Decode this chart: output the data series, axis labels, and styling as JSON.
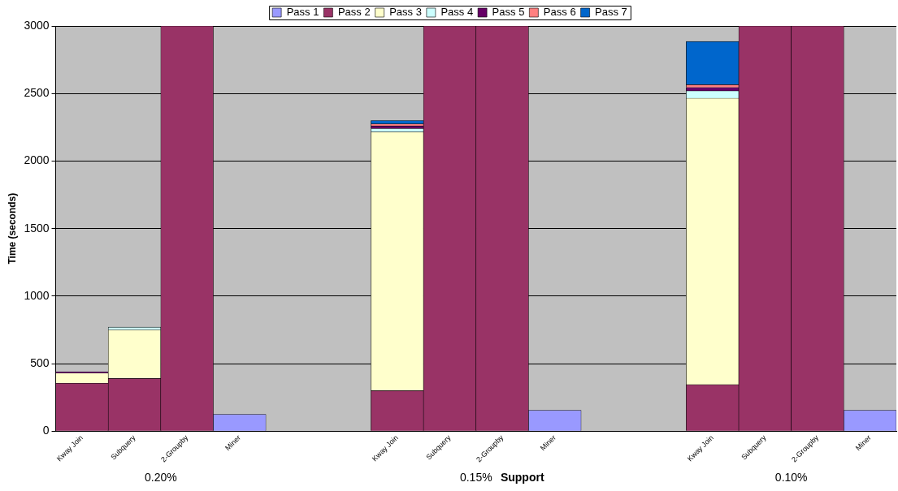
{
  "chart_data": {
    "type": "bar",
    "stacked": true,
    "xlabel": "Support",
    "ylabel": "Time (seconds)",
    "categories": [
      "Kway Join",
      "Subquery",
      "2-Groupby",
      "Miner",
      null,
      null,
      "Kway Join",
      "Subquery",
      "2-Groupby",
      "Miner",
      null,
      null,
      "Kway Join",
      "Subquery",
      "2-Groupby",
      "Miner"
    ],
    "series": [
      {
        "name": "Pass 1",
        "color": "#9999ff",
        "values": [
          null,
          null,
          null,
          125,
          null,
          null,
          null,
          null,
          null,
          155,
          null,
          null,
          null,
          null,
          null,
          155
        ]
      },
      {
        "name": "Pass 2",
        "color": "#993366",
        "values": [
          355,
          390,
          3000,
          null,
          null,
          null,
          300,
          3000,
          3000,
          null,
          null,
          null,
          345,
          3000,
          3000,
          null
        ]
      },
      {
        "name": "Pass 3",
        "color": "#ffffcc",
        "values": [
          75,
          360,
          null,
          null,
          null,
          null,
          1915,
          null,
          null,
          null,
          null,
          null,
          2120,
          null,
          null,
          null
        ]
      },
      {
        "name": "Pass 4",
        "color": "#ccffff",
        "values": [
          null,
          20,
          null,
          null,
          null,
          null,
          25,
          null,
          null,
          null,
          null,
          null,
          55,
          null,
          null,
          null
        ]
      },
      {
        "name": "Pass 5",
        "color": "#660066",
        "values": [
          10,
          null,
          null,
          null,
          null,
          null,
          20,
          null,
          null,
          null,
          null,
          null,
          25,
          null,
          null,
          null
        ]
      },
      {
        "name": "Pass 6",
        "color": "#ff8080",
        "values": [
          null,
          null,
          null,
          null,
          null,
          null,
          15,
          null,
          null,
          null,
          null,
          null,
          20,
          null,
          null,
          null
        ]
      },
      {
        "name": "Pass 7",
        "color": "#0066cc",
        "values": [
          null,
          null,
          null,
          null,
          null,
          null,
          25,
          null,
          null,
          null,
          null,
          null,
          320,
          null,
          null,
          null
        ]
      }
    ],
    "ylim": [
      0,
      3000
    ],
    "yticks": [
      0,
      500,
      1000,
      1500,
      2000,
      2500,
      3000
    ],
    "grid": "y",
    "legend": "top",
    "annotations": [
      "0.20%",
      "0.15%",
      "0.10%"
    ]
  }
}
